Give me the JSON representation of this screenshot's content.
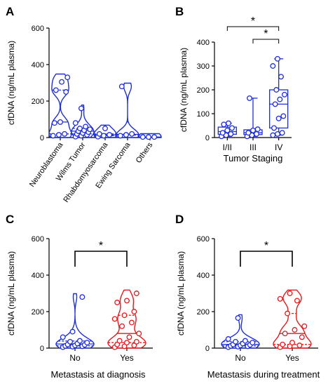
{
  "colors": {
    "blue": "#1f2fd6",
    "red": "#e4191b",
    "axis": "#000000",
    "bracket": "#000000"
  },
  "chart_data": [
    {
      "panel": "A",
      "type": "violin",
      "title": "",
      "xlabel": "",
      "ylabel": "cfDNA (ng/mL plasma)",
      "ylim": [
        0,
        600
      ],
      "yticks": [
        "0",
        "200",
        "400",
        "600"
      ],
      "categories": [
        "Neuroblastoma",
        "Wilms Tumor",
        "Rhabdomyosarcoma",
        "Ewing Sarcoma",
        "Others"
      ],
      "values": [
        [
          10,
          15,
          20,
          80,
          85,
          250,
          260,
          305,
          330
        ],
        [
          5,
          10,
          15,
          20,
          25,
          30,
          35,
          40,
          45,
          50,
          60,
          80,
          160
        ],
        [
          5,
          10,
          15,
          20,
          50
        ],
        [
          10,
          15,
          20,
          280
        ],
        [
          3,
          3,
          3
        ]
      ],
      "series_color": "blue"
    },
    {
      "panel": "B",
      "type": "box",
      "title": "",
      "xlabel": "Tumor Staging",
      "ylabel": "cfDNA (ng/mL plasma)",
      "ylim": [
        0,
        400
      ],
      "yticks": [
        "0",
        "100",
        "200",
        "300",
        "400"
      ],
      "categories": [
        "I/II",
        "III",
        "IV"
      ],
      "values": [
        [
          5,
          10,
          15,
          20,
          30,
          40,
          55,
          60
        ],
        [
          5,
          10,
          15,
          20,
          30,
          35,
          165
        ],
        [
          10,
          15,
          20,
          40,
          80,
          90,
          140,
          160,
          180,
          200,
          255,
          300,
          330
        ]
      ],
      "significance": [
        {
          "from": "I/II",
          "to": "IV",
          "label": "*"
        },
        {
          "from": "III",
          "to": "IV",
          "label": "*"
        }
      ],
      "series_color": "blue"
    },
    {
      "panel": "C",
      "type": "violin",
      "title": "",
      "xlabel": "Metastasis at diagnosis",
      "ylabel": "cfDNA (ng/mL plasma)",
      "ylim": [
        0,
        600
      ],
      "yticks": [
        "0",
        "200",
        "400",
        "600"
      ],
      "categories": [
        "No",
        "Yes"
      ],
      "values": [
        [
          5,
          8,
          10,
          12,
          15,
          18,
          20,
          25,
          30,
          35,
          40,
          60,
          90,
          280
        ],
        [
          5,
          10,
          15,
          20,
          30,
          35,
          40,
          60,
          80,
          120,
          140,
          160,
          180,
          200,
          250,
          260,
          300
        ]
      ],
      "series_colors": [
        "blue",
        "red"
      ],
      "significance": [
        {
          "from": "No",
          "to": "Yes",
          "label": "*"
        }
      ]
    },
    {
      "panel": "D",
      "type": "violin",
      "title": "",
      "xlabel": "Metastasis during treatment",
      "ylabel": "cfDNA (ng/mL plasma)",
      "ylim": [
        0,
        600
      ],
      "yticks": [
        "0",
        "200",
        "400",
        "600"
      ],
      "categories": [
        "No",
        "Yes"
      ],
      "values": [
        [
          5,
          8,
          10,
          12,
          15,
          18,
          20,
          25,
          30,
          35,
          40,
          50,
          165
        ],
        [
          5,
          10,
          15,
          20,
          30,
          60,
          80,
          100,
          120,
          190,
          260,
          270,
          300
        ]
      ],
      "series_colors": [
        "blue",
        "red"
      ],
      "significance": [
        {
          "from": "No",
          "to": "Yes",
          "label": "*"
        }
      ]
    }
  ]
}
